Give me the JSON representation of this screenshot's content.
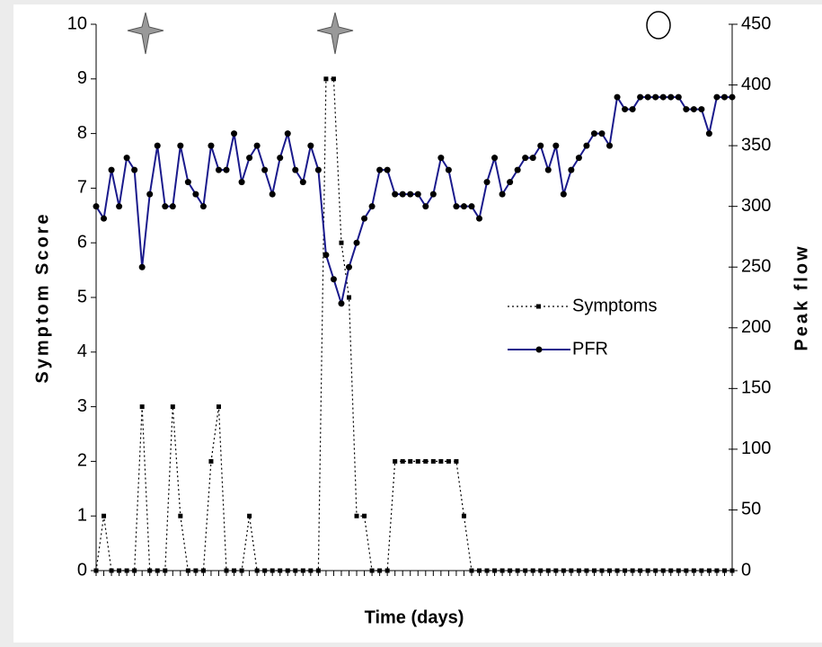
{
  "chart_data": {
    "type": "line",
    "x_label": "Time (days)",
    "y_label": "Symptom Score",
    "y2_label": "Peak flow",
    "categories": [
      null,
      null,
      null,
      null,
      null,
      null,
      null,
      null,
      null,
      null,
      null,
      null,
      null,
      null,
      null,
      null,
      null,
      null,
      null,
      null,
      null,
      null,
      null,
      null,
      null,
      null,
      null,
      null,
      null,
      null,
      null,
      null,
      null,
      null,
      null,
      null,
      null,
      null,
      null,
      null,
      null,
      null,
      null,
      null,
      null,
      null,
      null,
      null,
      null,
      null,
      null,
      null,
      null,
      null,
      null,
      null,
      null,
      null,
      null,
      null,
      null,
      null,
      null,
      null,
      null,
      null,
      null,
      null,
      null,
      null,
      null,
      null,
      null,
      null,
      null,
      null,
      null,
      null,
      null,
      null,
      null,
      null,
      null,
      null
    ],
    "series": [
      {
        "name": "Symptoms",
        "color": "#000000",
        "axis": "y",
        "values": [
          0,
          1,
          0,
          0,
          0,
          0,
          3,
          0,
          0,
          0,
          3,
          1,
          0,
          0,
          0,
          2,
          3,
          0,
          0,
          0,
          1,
          0,
          0,
          0,
          0,
          0,
          0,
          0,
          0,
          0,
          9,
          9,
          6,
          5,
          1,
          1,
          0,
          0,
          0,
          2,
          2,
          2,
          2,
          2,
          2,
          2,
          2,
          2,
          1,
          0,
          0,
          0,
          0,
          0,
          0,
          0,
          0,
          0,
          0,
          0,
          0,
          0,
          0,
          0,
          0,
          0,
          0,
          0,
          0,
          0,
          0,
          0,
          0,
          0,
          0,
          0,
          0,
          0,
          0,
          0,
          0,
          0,
          0,
          0
        ]
      },
      {
        "name": "PFR",
        "color": "#1a1a8c",
        "axis": "y2",
        "values": [
          300,
          290,
          330,
          300,
          340,
          330,
          250,
          310,
          350,
          300,
          300,
          350,
          320,
          310,
          300,
          350,
          330,
          330,
          360,
          320,
          340,
          350,
          330,
          310,
          340,
          360,
          330,
          320,
          350,
          330,
          260,
          240,
          220,
          250,
          270,
          290,
          300,
          330,
          330,
          310,
          310,
          310,
          310,
          300,
          310,
          340,
          330,
          300,
          300,
          300,
          290,
          320,
          340,
          310,
          320,
          330,
          340,
          340,
          350,
          330,
          350,
          310,
          330,
          340,
          350,
          360,
          360,
          350,
          390,
          380,
          380,
          390,
          390,
          390,
          390,
          390,
          390,
          380,
          380,
          380,
          360,
          390,
          390,
          390
        ]
      }
    ],
    "ylim": [
      0,
      10
    ],
    "yticks": [
      0,
      1,
      2,
      3,
      4,
      5,
      6,
      7,
      8,
      9,
      10
    ],
    "y2lim": [
      0,
      450
    ],
    "y2ticks": [
      0,
      50,
      100,
      150,
      200,
      250,
      300,
      350,
      400,
      450
    ],
    "legend": "center-right"
  }
}
